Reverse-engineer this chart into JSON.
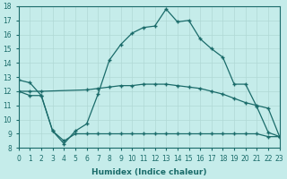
{
  "xlabel": "Humidex (Indice chaleur)",
  "bg_color": "#c5ecea",
  "line_color": "#1a6b6a",
  "grid_color": "#b0d8d5",
  "xlim": [
    0,
    23
  ],
  "ylim": [
    8,
    18
  ],
  "xticks": [
    0,
    1,
    2,
    3,
    4,
    5,
    6,
    7,
    8,
    9,
    10,
    11,
    12,
    13,
    14,
    15,
    16,
    17,
    18,
    19,
    20,
    21,
    22,
    23
  ],
  "yticks": [
    8,
    9,
    10,
    11,
    12,
    13,
    14,
    15,
    16,
    17,
    18
  ],
  "line1_x": [
    0,
    1,
    2,
    3,
    4,
    5,
    6,
    7,
    8,
    9,
    10,
    11,
    12,
    13,
    14,
    15,
    16,
    17,
    18,
    19,
    20,
    21,
    22,
    23
  ],
  "line1_y": [
    12.8,
    12.6,
    11.7,
    9.2,
    8.3,
    9.2,
    9.7,
    11.8,
    14.2,
    15.3,
    16.1,
    16.5,
    16.6,
    17.8,
    16.9,
    17.0,
    15.7,
    15.0,
    14.4,
    12.5,
    12.5,
    10.9,
    9.1,
    8.8
  ],
  "line2_x": [
    0,
    1,
    2,
    6,
    7,
    8,
    9,
    10,
    11,
    12,
    13,
    14,
    15,
    16,
    17,
    18,
    19,
    20,
    21,
    22,
    23
  ],
  "line2_y": [
    12.0,
    12.0,
    12.0,
    12.1,
    12.2,
    12.3,
    12.4,
    12.4,
    12.5,
    12.5,
    12.5,
    12.4,
    12.3,
    12.2,
    12.0,
    11.8,
    11.5,
    11.2,
    11.0,
    10.8,
    8.8
  ],
  "line3_x": [
    0,
    1,
    2,
    3,
    4,
    5,
    6,
    7,
    8,
    9,
    10,
    11,
    12,
    13,
    14,
    15,
    16,
    17,
    18,
    19,
    20,
    21,
    22,
    23
  ],
  "line3_y": [
    12.0,
    11.7,
    11.7,
    9.2,
    8.5,
    9.0,
    9.0,
    9.0,
    9.0,
    9.0,
    9.0,
    9.0,
    9.0,
    9.0,
    9.0,
    9.0,
    9.0,
    9.0,
    9.0,
    9.0,
    9.0,
    9.0,
    8.8,
    8.8
  ]
}
